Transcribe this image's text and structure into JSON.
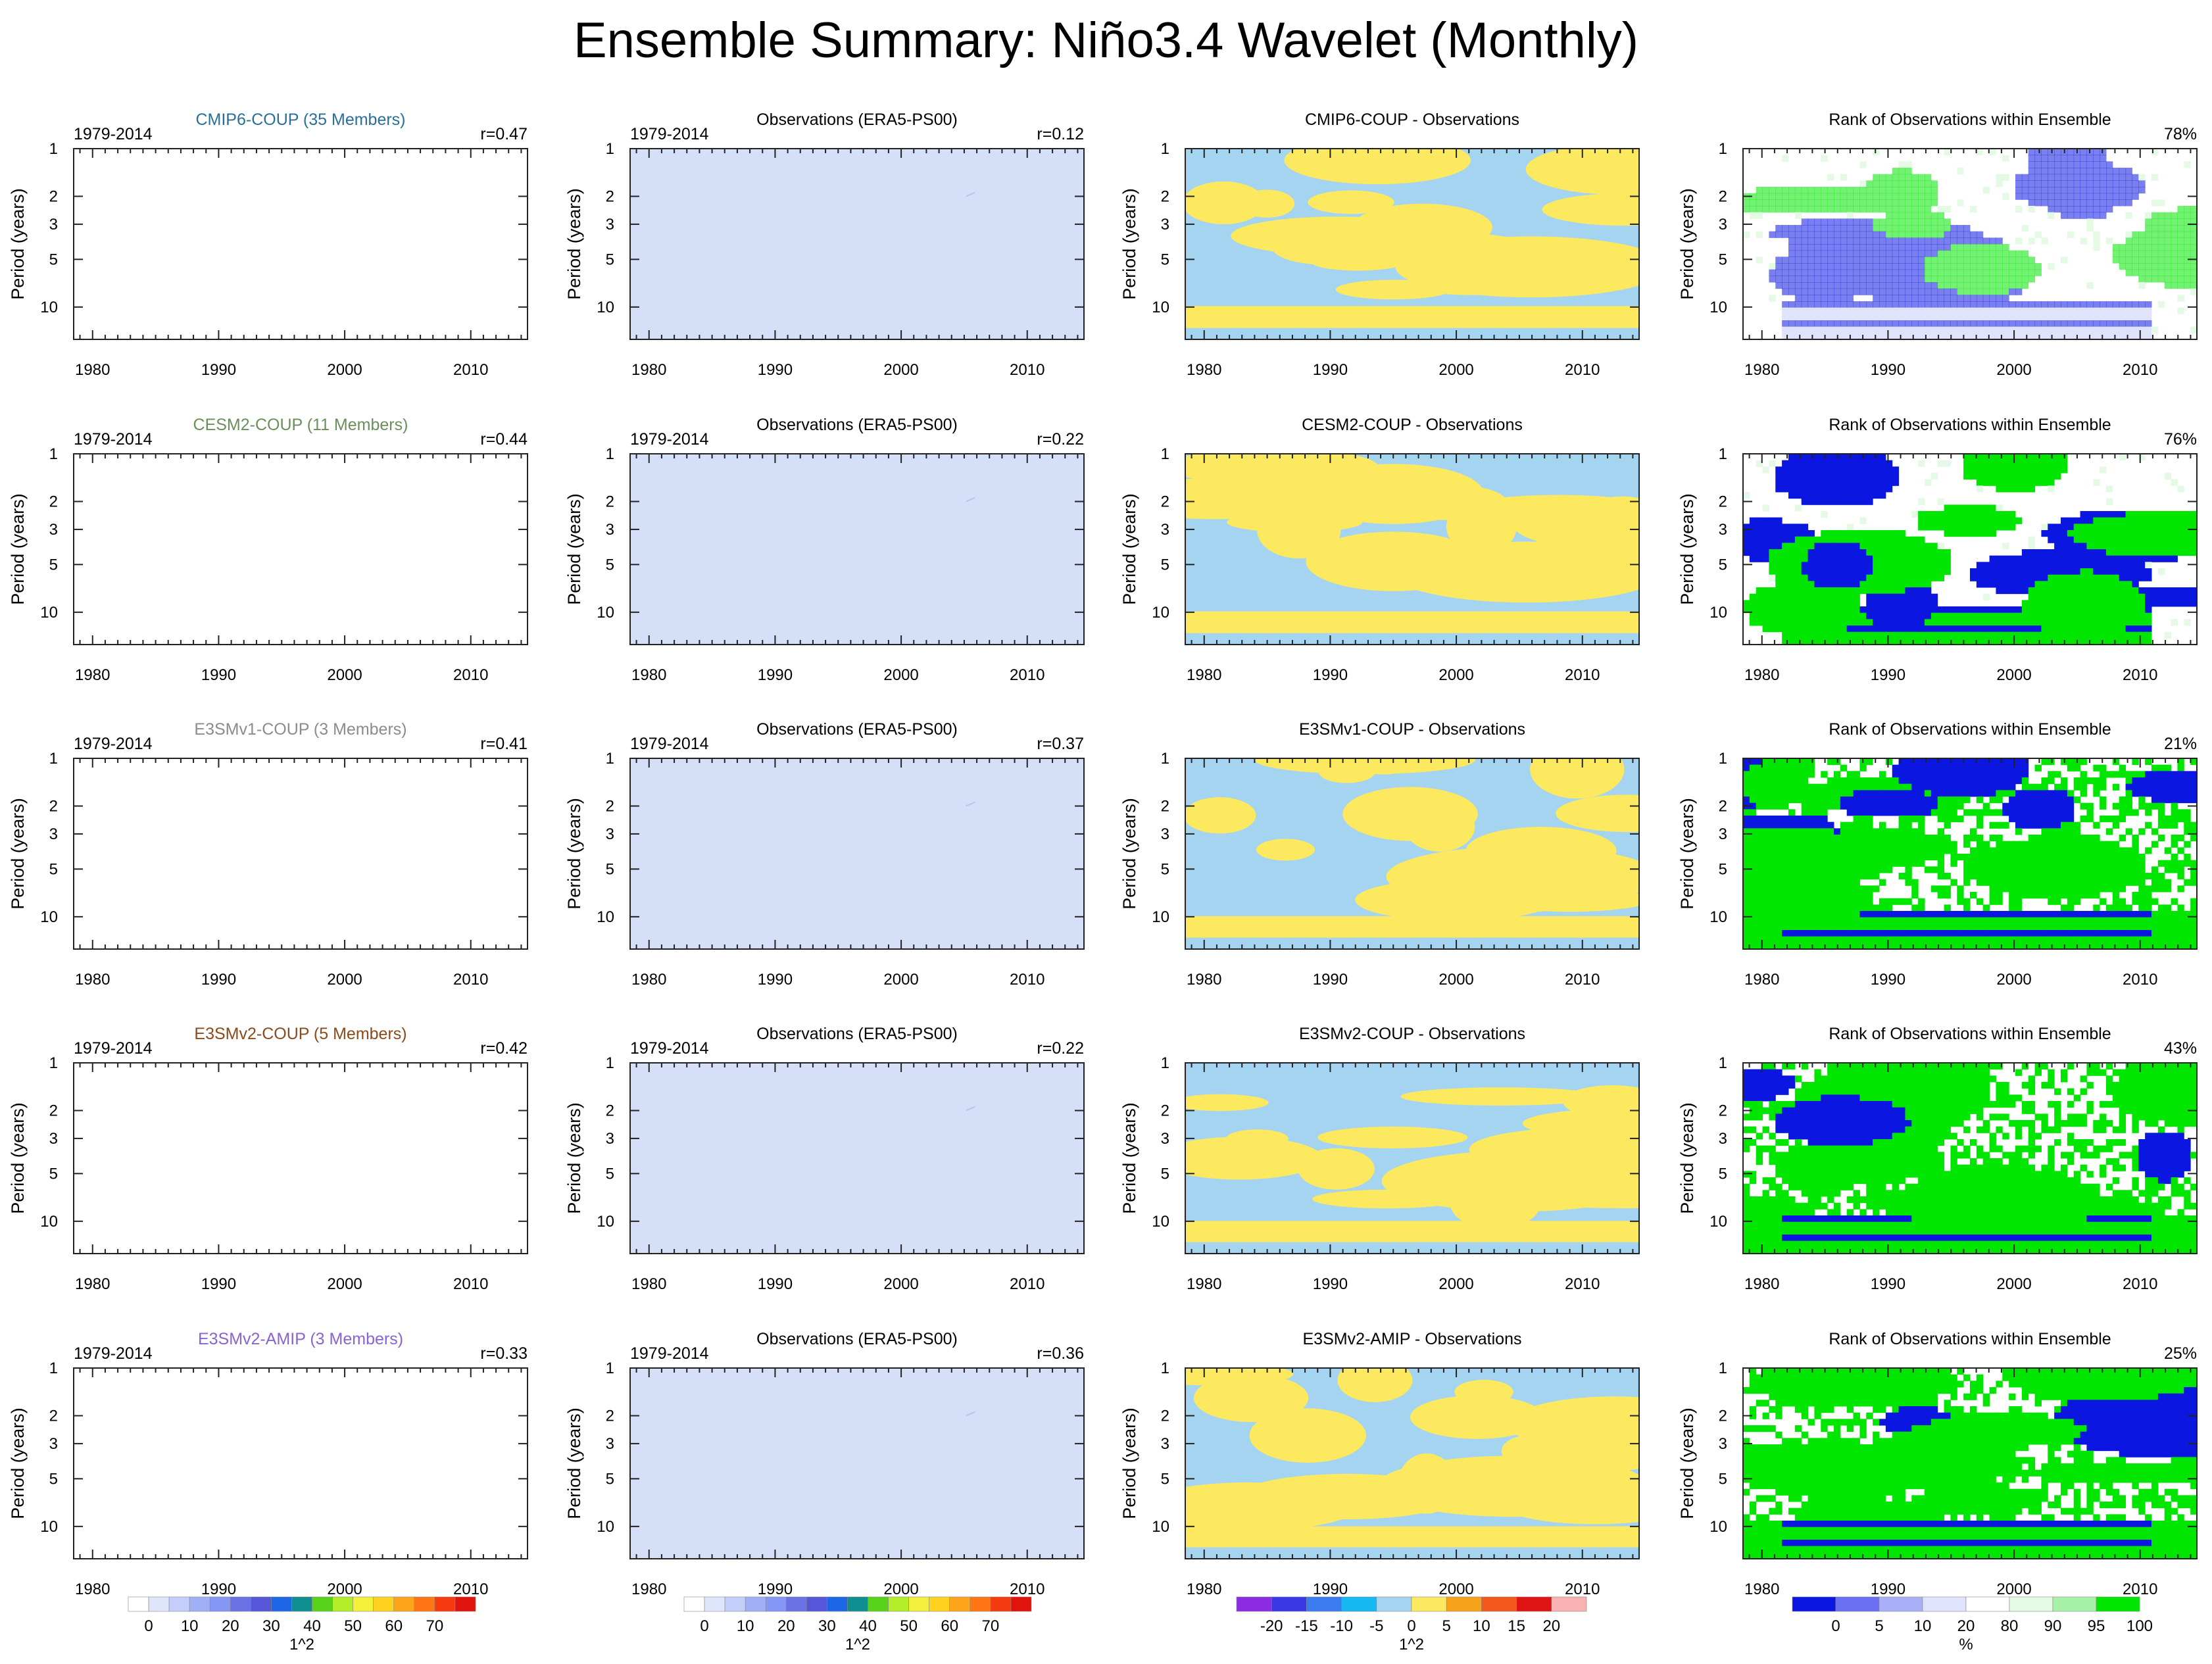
{
  "title": "Ensemble Summary: Niño3.4 Wavelet (Monthly)",
  "period_label": "1979-2014",
  "y_axis_label": "Period (years)",
  "obs_title": "Observations (ERA5-PS00)",
  "rank_title": "Rank of Observations within Ensemble",
  "x_tick_labels": [
    "1980",
    "1990",
    "2000",
    "2010"
  ],
  "y_tick_labels": [
    "1",
    "2",
    "3",
    "5",
    "10"
  ],
  "rows": [
    {
      "model": "CMIP6-COUP (35 Members)",
      "model_color": "#2a6f97",
      "model_r": "r=0.47",
      "obs_r": "r=0.12",
      "diff_title": "CMIP6-COUP - Observations",
      "rank_pct": "78%"
    },
    {
      "model": "CESM2-COUP (11 Members)",
      "model_color": "#6a8f5a",
      "model_r": "r=0.44",
      "obs_r": "r=0.22",
      "diff_title": "CESM2-COUP - Observations",
      "rank_pct": "76%"
    },
    {
      "model": "E3SMv1-COUP (3 Members)",
      "model_color": "#8c8c8c",
      "model_r": "r=0.41",
      "obs_r": "r=0.37",
      "diff_title": "E3SMv1-COUP - Observations",
      "rank_pct": "21%"
    },
    {
      "model": "E3SMv2-COUP (5 Members)",
      "model_color": "#8b4a1c",
      "model_r": "r=0.42",
      "obs_r": "r=0.22",
      "diff_title": "E3SMv2-COUP - Observations",
      "rank_pct": "43%"
    },
    {
      "model": "E3SMv2-AMIP (3 Members)",
      "model_color": "#8a63d2",
      "model_r": "r=0.33",
      "obs_r": "r=0.36",
      "diff_title": "E3SMv2-AMIP - Observations",
      "rank_pct": "25%"
    }
  ],
  "colors": {
    "obs_fill": "#d5dff8",
    "diff_positive": "#fde95f",
    "diff_negative": "#a4d4ef",
    "rank_high": "#00e600",
    "rank_low": "#0b16e0"
  },
  "chart_data": {
    "type": "heatmap",
    "panel_types": [
      "model mean wavelet power",
      "observed wavelet power",
      "model minus observations",
      "rank of observations within ensemble"
    ],
    "xlim": [
      1979,
      2014
    ],
    "ylim_years": [
      1,
      16
    ],
    "y_scale": "log",
    "colorbars": [
      {
        "name": "power",
        "units": "1^2",
        "labels": [
          "0",
          "10",
          "20",
          "30",
          "40",
          "50",
          "60",
          "70"
        ],
        "colors": [
          "#ffffff",
          "#dfe6fb",
          "#c3cefa",
          "#9fb0f6",
          "#8596f4",
          "#6a72e6",
          "#5656d8",
          "#1d67e6",
          "#0f8f8f",
          "#59d21b",
          "#b4ee29",
          "#f2f03a",
          "#ffd21f",
          "#ffa51c",
          "#ff7614",
          "#f53a0f",
          "#e0140c"
        ]
      },
      {
        "name": "difference",
        "units": "1^2",
        "labels": [
          "-20",
          "-15",
          "-10",
          "-5",
          "0",
          "5",
          "10",
          "15",
          "20"
        ],
        "colors": [
          "#8b2be2",
          "#3838e6",
          "#3b7bf0",
          "#15b8f0",
          "#a4d4ef",
          "#fde95f",
          "#f7a21b",
          "#f2591b",
          "#e01414",
          "#f8b2b2"
        ]
      },
      {
        "name": "rank",
        "units": "%",
        "labels": [
          "0",
          "5",
          "10",
          "20",
          "80",
          "90",
          "95",
          "100"
        ],
        "colors": [
          "#0b16e0",
          "#6a6ef0",
          "#aab0f8",
          "#dfe3fb",
          "#ffffff",
          "#e4fae4",
          "#a8f2a8",
          "#00e600"
        ]
      }
    ]
  }
}
